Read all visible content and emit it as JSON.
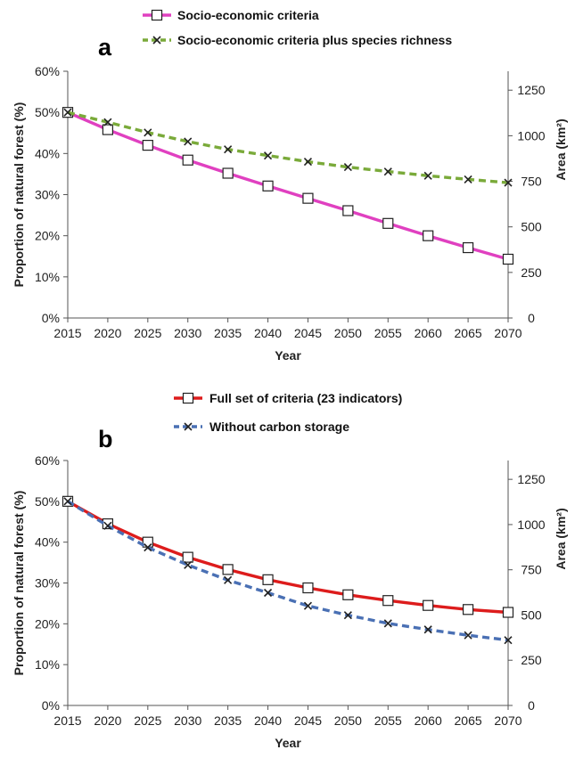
{
  "chart_data": [
    {
      "type": "line",
      "panel_label": "a",
      "x": [
        2015,
        2020,
        2025,
        2030,
        2035,
        2040,
        2045,
        2050,
        2055,
        2060,
        2065,
        2070
      ],
      "series": [
        {
          "name": "Socio-economic criteria",
          "color": "#e040c0",
          "line_style": "solid",
          "marker": "square",
          "values": [
            50,
            45.8,
            42,
            38.4,
            35.2,
            32.1,
            29.1,
            26.1,
            23,
            20,
            17.1,
            14.3
          ]
        },
        {
          "name": "Socio-economic criteria plus species richness",
          "color": "#7aaa3a",
          "line_style": "dashed",
          "marker": "x",
          "values": [
            50,
            47.6,
            45.1,
            42.9,
            41,
            39.5,
            38,
            36.7,
            35.6,
            34.6,
            33.7,
            32.9
          ]
        }
      ],
      "xlabel": "Year",
      "ylabel": "Proportion of natural forest  (%)",
      "y2label": "Area (km²)",
      "ylim": [
        0,
        60
      ],
      "y2lim": [
        0,
        1300
      ],
      "yticks": [
        "0%",
        "10%",
        "20%",
        "30%",
        "40%",
        "50%",
        "60%"
      ],
      "y2ticks": [
        "0",
        "250",
        "500",
        "750",
        "1000",
        "1250"
      ],
      "xticks": [
        "2015",
        "2020",
        "2025",
        "2030",
        "2035",
        "2040",
        "2045",
        "2050",
        "2055",
        "2060",
        "2065",
        "2070"
      ],
      "legend_position": "top",
      "grid": false
    },
    {
      "type": "line",
      "panel_label": "b",
      "x": [
        2015,
        2020,
        2025,
        2030,
        2035,
        2040,
        2045,
        2050,
        2055,
        2060,
        2065,
        2070
      ],
      "series": [
        {
          "name": "Full set of criteria (23 indicators)",
          "color": "#dd1c1c",
          "line_style": "solid",
          "marker": "square",
          "values": [
            50,
            44.5,
            40,
            36.3,
            33.3,
            30.8,
            28.8,
            27.1,
            25.7,
            24.5,
            23.5,
            22.8
          ]
        },
        {
          "name": "Without carbon storage",
          "color": "#4a70b4",
          "line_style": "dashed",
          "marker": "x",
          "values": [
            50,
            44,
            38.7,
            34.4,
            30.7,
            27.6,
            24.4,
            22.1,
            20.1,
            18.6,
            17.2,
            16
          ]
        }
      ],
      "xlabel": "Year",
      "ylabel": "Proportion of natural forest  (%)",
      "y2label": "Area (km²)",
      "ylim": [
        0,
        60
      ],
      "y2lim": [
        0,
        1300
      ],
      "yticks": [
        "0%",
        "10%",
        "20%",
        "30%",
        "40%",
        "50%",
        "60%"
      ],
      "y2ticks": [
        "0",
        "250",
        "500",
        "750",
        "1000",
        "1250"
      ],
      "xticks": [
        "2015",
        "2020",
        "2025",
        "2030",
        "2035",
        "2040",
        "2045",
        "2050",
        "2055",
        "2060",
        "2065",
        "2070"
      ],
      "legend_position": "top",
      "grid": false
    }
  ]
}
